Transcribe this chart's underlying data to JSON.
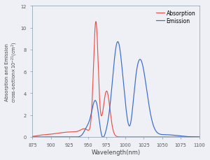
{
  "xlabel": "Wavelength(nm)",
  "ylabel": "Absorption and Emission\ncross-section×10⁻²¹(cm²)",
  "xlim": [
    875,
    1100
  ],
  "ylim": [
    0,
    12
  ],
  "yticks": [
    0,
    2,
    4,
    6,
    8,
    10,
    12
  ],
  "xticks": [
    875,
    900,
    925,
    950,
    975,
    1000,
    1025,
    1050,
    1075,
    1100
  ],
  "absorption_color": "#E8524A",
  "emission_color": "#3A6BC8",
  "legend_labels": [
    "Absorption",
    "Emission"
  ],
  "fig_facecolor": "#EEF0F5",
  "axes_facecolor": "#EEF0F5"
}
